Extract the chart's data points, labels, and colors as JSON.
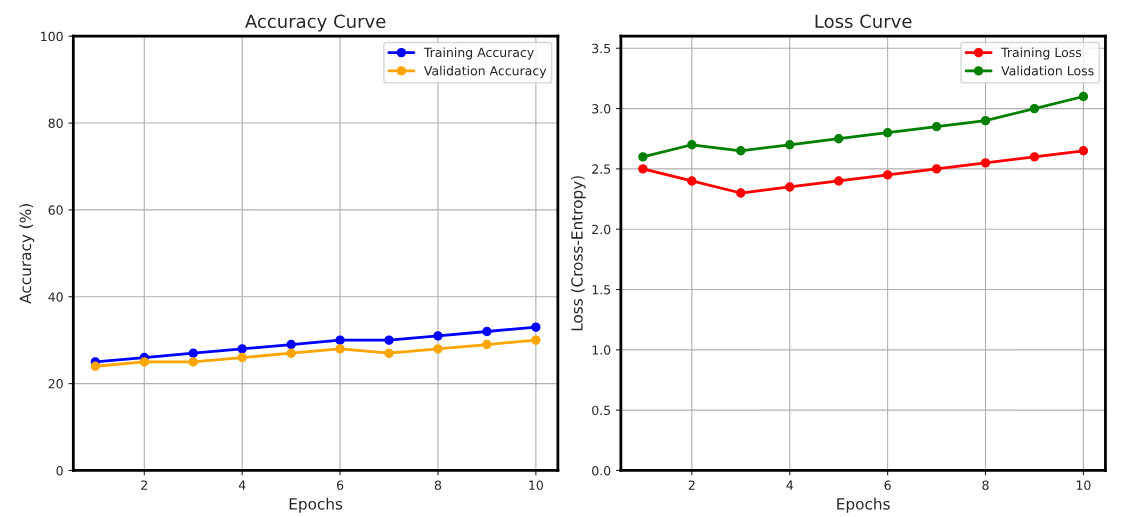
{
  "chart_data": [
    {
      "type": "line",
      "title": "Accuracy Curve",
      "xlabel": "Epochs",
      "ylabel": "Accuracy (%)",
      "x": [
        1,
        2,
        3,
        4,
        5,
        6,
        7,
        8,
        9,
        10
      ],
      "xlim": [
        0.55,
        10.45
      ],
      "xticks": [
        2,
        4,
        6,
        8,
        10
      ],
      "ylim": [
        0,
        100
      ],
      "yticks": [
        0,
        20,
        40,
        60,
        80,
        100
      ],
      "grid": true,
      "legend": "top right",
      "marker": "circle",
      "line_style": "solid",
      "series": [
        {
          "name": "Training Accuracy",
          "color": "#0000ff",
          "values": [
            25,
            26,
            27,
            28,
            29,
            30,
            30,
            31,
            32,
            33
          ]
        },
        {
          "name": "Validation Accuracy",
          "color": "#ffa500",
          "values": [
            24,
            25,
            25,
            26,
            27,
            28,
            27,
            28,
            29,
            30
          ]
        }
      ]
    },
    {
      "type": "line",
      "title": "Loss Curve",
      "xlabel": "Epochs",
      "ylabel": "Loss (Cross-Entropy)",
      "x": [
        1,
        2,
        3,
        4,
        5,
        6,
        7,
        8,
        9,
        10
      ],
      "xlim": [
        0.55,
        10.45
      ],
      "xticks": [
        2,
        4,
        6,
        8,
        10
      ],
      "ylim": [
        0,
        3.6
      ],
      "yticks": [
        {
          "value": 0,
          "label": "0.0"
        },
        0.5,
        {
          "value": 1,
          "label": "1.0"
        },
        1.5,
        {
          "value": 2,
          "label": "2.0"
        },
        2.5,
        {
          "value": 3,
          "label": "3.0"
        },
        3.5
      ],
      "grid": true,
      "legend": "top right",
      "marker": "circle",
      "line_style": "solid",
      "series": [
        {
          "name": "Training Loss",
          "color": "#ff0000",
          "values": [
            2.5,
            2.4,
            2.3,
            2.35,
            2.4,
            2.45,
            2.5,
            2.55,
            2.6,
            2.65
          ]
        },
        {
          "name": "Validation Loss",
          "color": "#008000",
          "values": [
            2.6,
            2.7,
            2.65,
            2.7,
            2.75,
            2.8,
            2.85,
            2.9,
            3.0,
            3.1
          ]
        }
      ]
    }
  ]
}
